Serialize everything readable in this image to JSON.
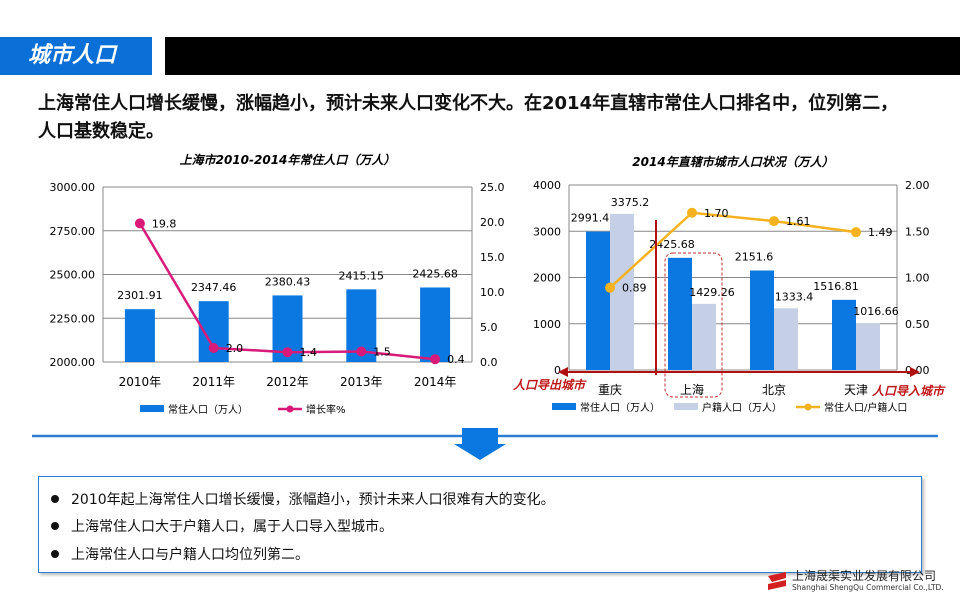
{
  "header": {
    "tab_title": "城市人口"
  },
  "headline": {
    "line1": "上海常住人口增长缓慢，涨幅趋小，预计未来人口变化不大。在2014年直辖市常住人口排名中，位列第二，",
    "line2": "人口基数稳定。"
  },
  "chart_data": [
    {
      "type": "bar+line",
      "title": "上海市2010-2014年常住人口（万人）",
      "categories": [
        "2010年",
        "2011年",
        "2012年",
        "2013年",
        "2014年"
      ],
      "series": [
        {
          "name": "常住人口（万人）",
          "type": "bar",
          "axis": "left",
          "color": "#0a78e0",
          "values": [
            2301.91,
            2347.46,
            2380.43,
            2415.15,
            2425.68
          ],
          "labels": [
            "2301.91",
            "2347.46",
            "2380.43",
            "2415.15",
            "2425.68"
          ]
        },
        {
          "name": "增长率%",
          "type": "line",
          "axis": "right",
          "color": "#d81b7a",
          "values": [
            19.8,
            2.0,
            1.4,
            1.5,
            0.4
          ],
          "labels": [
            "19.8",
            "2.0",
            "1.4",
            "1.5",
            "0.4"
          ]
        }
      ],
      "ylim": [
        2000,
        3000
      ],
      "yticks": [
        "2000.00",
        "2250.00",
        "2500.00",
        "2750.00",
        "3000.00"
      ],
      "y2lim": [
        0,
        25
      ],
      "y2ticks": [
        "0.0",
        "5.0",
        "10.0",
        "15.0",
        "20.0",
        "25.0"
      ],
      "grid": true,
      "legend": "bottom"
    },
    {
      "type": "bar+line",
      "title": "2014年直辖市城市人口状况（万人）",
      "categories": [
        "重庆",
        "上海",
        "北京",
        "天津"
      ],
      "series": [
        {
          "name": "常住人口（万人）",
          "type": "bar",
          "axis": "left",
          "color": "#0a78e0",
          "values": [
            2991.4,
            2425.68,
            2151.6,
            1516.81
          ],
          "labels": [
            "2991.4",
            "2425.68",
            "2151.6",
            "1516.81"
          ]
        },
        {
          "name": "户籍人口（万人）",
          "type": "bar",
          "axis": "left",
          "color": "#c5cfe6",
          "values": [
            3375.2,
            1429.26,
            1333.4,
            1016.66
          ],
          "labels": [
            "3375.2",
            "1429.26",
            "1333.4",
            "1016.66"
          ]
        },
        {
          "name": "常住人口/户籍人口",
          "type": "line",
          "axis": "right",
          "color": "#f5b21e",
          "values": [
            0.89,
            1.7,
            1.61,
            1.49
          ],
          "labels": [
            "0.89",
            "1.70",
            "1.61",
            "1.49"
          ]
        }
      ],
      "ylim": [
        0,
        4000
      ],
      "yticks": [
        "0",
        "1000",
        "2000",
        "3000",
        "4000"
      ],
      "y2lim": [
        0,
        2
      ],
      "y2ticks": [
        "0.00",
        "0.50",
        "1.00",
        "1.50",
        "2.00"
      ],
      "annotations": {
        "left": "人口导出城市",
        "right": "人口导入城市"
      },
      "grid": true,
      "legend": "bottom"
    }
  ],
  "summary": {
    "items": [
      "2010年起上海常住人口增长缓慢，涨幅趋小，预计未来人口很难有大的变化。",
      "上海常住人口大于户籍人口，属于人口导入型城市。",
      "上海常住人口与户籍人口均位列第二。"
    ]
  },
  "footer": {
    "company_cn": "上海晟渠实业发展有限公司",
    "company_en": "Shanghai ShengQu Commercial Co.,LTD."
  }
}
